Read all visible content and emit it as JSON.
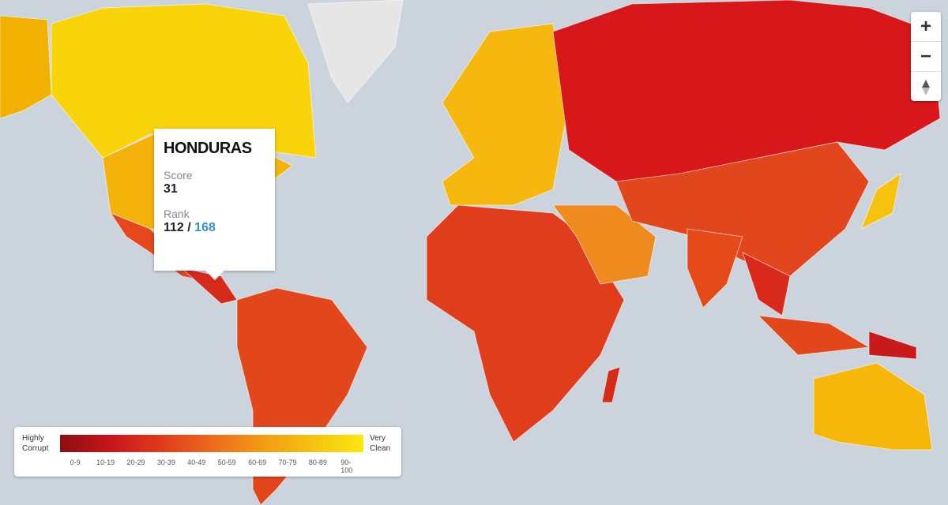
{
  "tooltip": {
    "country": "HONDURAS",
    "score_label": "Score",
    "score": "31",
    "rank_label": "Rank",
    "rank": "112",
    "rank_separator": "/",
    "rank_total": "168"
  },
  "legend": {
    "low_label": "Highly Corrupt",
    "high_label": "Very Clean",
    "ranges": [
      "0-9",
      "10-19",
      "20-29",
      "30-39",
      "40-49",
      "50-59",
      "60-69",
      "70-79",
      "80-89",
      "90-100"
    ]
  },
  "zoom": {
    "zoom_in": "+",
    "zoom_out": "−"
  }
}
